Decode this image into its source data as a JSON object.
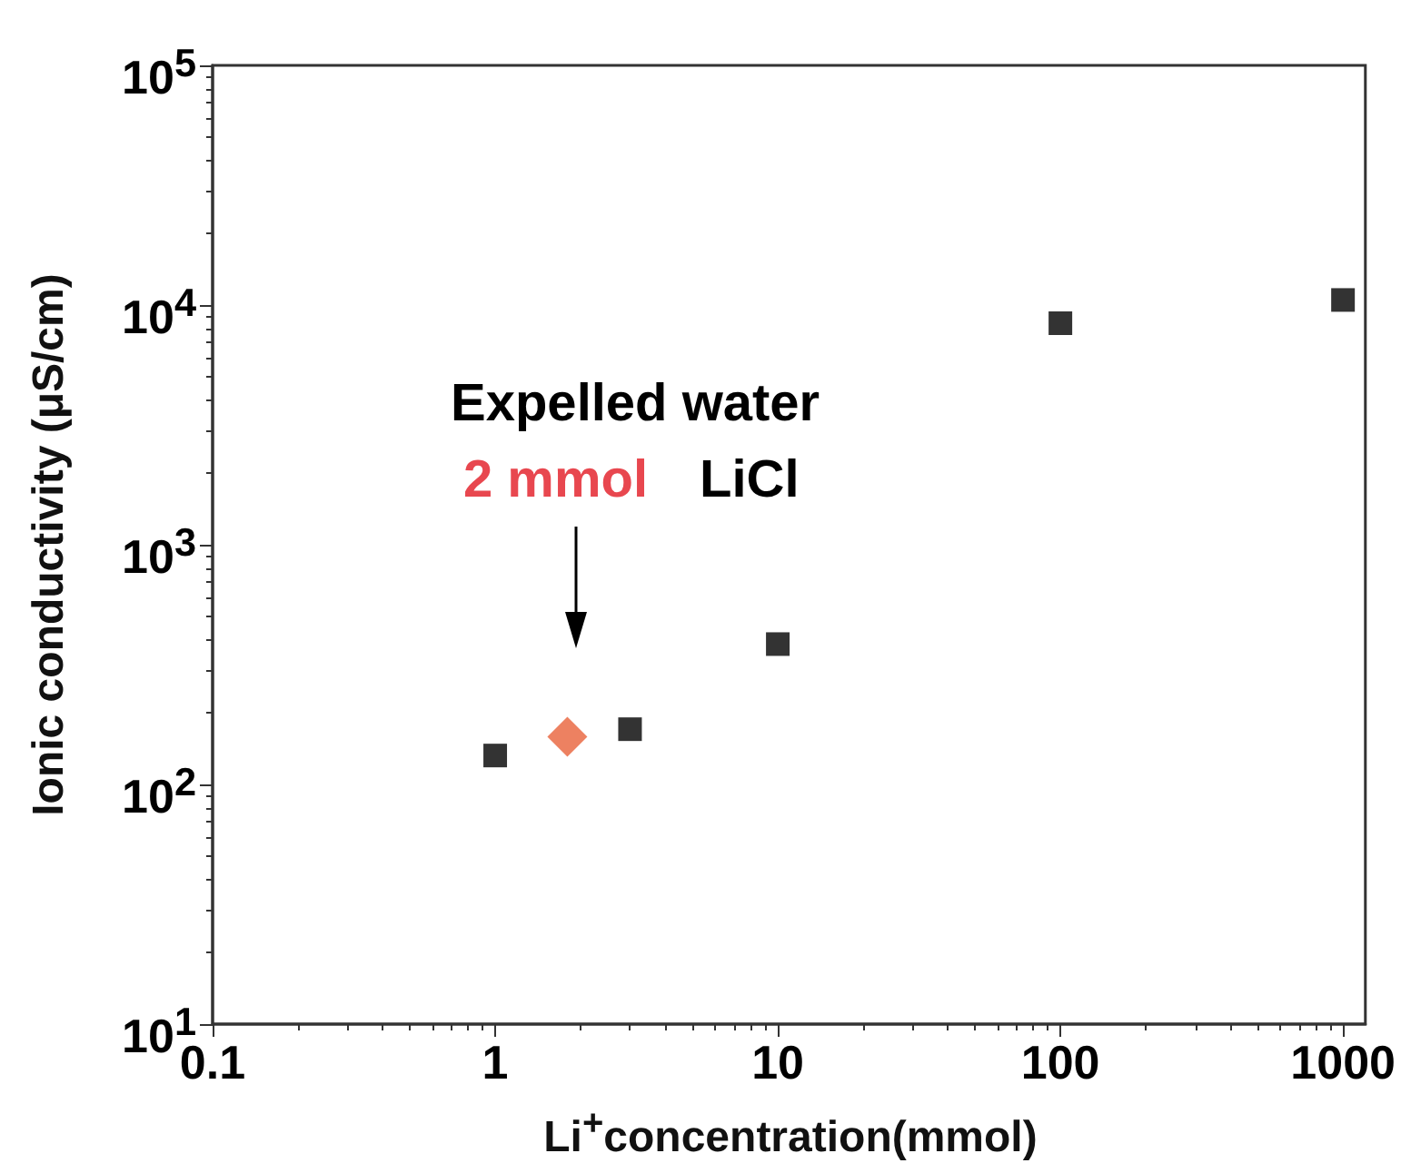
{
  "chart_data": {
    "type": "scatter",
    "xlabel": "Li$^{+}$concentration(mmol)",
    "ylabel": "Ionic conductivity (μS/cm)",
    "annotations": [
      "Expelled water",
      "2 mmol",
      "LiCl"
    ],
    "log": "xy",
    "xlim": [
      0.1,
      1200
    ],
    "ylim": [
      10,
      100000
    ],
    "xticks": [
      0.1,
      {
        "value": 0.2,
        "label": null
      },
      {
        "value": 0.3,
        "label": null
      },
      {
        "value": 0.4,
        "label": null
      },
      {
        "value": 0.5,
        "label": null
      },
      {
        "value": 0.6,
        "label": null
      },
      {
        "value": 0.7,
        "label": null
      },
      {
        "value": 0.8,
        "label": null
      },
      {
        "value": 0.9,
        "label": null
      },
      1,
      {
        "value": 2,
        "label": null
      },
      {
        "value": 3,
        "label": null
      },
      {
        "value": 4,
        "label": null
      },
      {
        "value": 5,
        "label": null
      },
      {
        "value": 6,
        "label": null
      },
      {
        "value": 7,
        "label": null
      },
      {
        "value": 8,
        "label": null
      },
      {
        "value": 9,
        "label": null
      },
      10,
      {
        "value": 20,
        "label": null
      },
      {
        "value": 30,
        "label": null
      },
      {
        "value": 40,
        "label": null
      },
      {
        "value": 50,
        "label": null
      },
      {
        "value": 60,
        "label": null
      },
      {
        "value": 70,
        "label": null
      },
      {
        "value": 80,
        "label": null
      },
      {
        "value": 90,
        "label": null
      },
      100,
      {
        "value": 200,
        "label": null
      },
      {
        "value": 300,
        "label": null
      },
      {
        "value": 400,
        "label": null
      },
      {
        "value": 500,
        "label": null
      },
      {
        "value": 600,
        "label": null
      },
      {
        "value": 700,
        "label": null
      },
      {
        "value": 800,
        "label": null
      },
      {
        "value": 900,
        "label": null
      },
      1000
    ],
    "yticks": [
      {
        "value": 10,
        "label": "10$^{1}$"
      },
      {
        "value": 20,
        "label": null
      },
      {
        "value": 30,
        "label": null
      },
      {
        "value": 40,
        "label": null
      },
      {
        "value": 50,
        "label": null
      },
      {
        "value": 60,
        "label": null
      },
      {
        "value": 70,
        "label": null
      },
      {
        "value": 80,
        "label": null
      },
      {
        "value": 90,
        "label": null
      },
      {
        "value": 100,
        "label": "10$^{2}$"
      },
      {
        "value": 200,
        "label": null
      },
      {
        "value": 300,
        "label": null
      },
      {
        "value": 400,
        "label": null
      },
      {
        "value": 500,
        "label": null
      },
      {
        "value": 600,
        "label": null
      },
      {
        "value": 700,
        "label": null
      },
      {
        "value": 800,
        "label": null
      },
      {
        "value": 900,
        "label": null
      },
      {
        "value": 1000,
        "label": "10$^{3}$"
      },
      {
        "value": 2000,
        "label": null
      },
      {
        "value": 3000,
        "label": null
      },
      {
        "value": 4000,
        "label": null
      },
      {
        "value": 5000,
        "label": null
      },
      {
        "value": 6000,
        "label": null
      },
      {
        "value": 7000,
        "label": null
      },
      {
        "value": 8000,
        "label": null
      },
      {
        "value": 9000,
        "label": null
      },
      {
        "value": 10000,
        "label": "10$^{4}$"
      },
      {
        "value": 20000,
        "label": null
      },
      {
        "value": 30000,
        "label": null
      },
      {
        "value": 40000,
        "label": null
      },
      {
        "value": 50000,
        "label": null
      },
      {
        "value": 60000,
        "label": null
      },
      {
        "value": 70000,
        "label": null
      },
      {
        "value": 80000,
        "label": null
      },
      {
        "value": 90000,
        "label": null
      },
      {
        "value": 100000,
        "label": "10$^{5}$"
      }
    ],
    "grid": false,
    "series": [
      {
        "color": "#000000",
        "marker": "square",
        "x": [
          1,
          3,
          10,
          100,
          1000
        ],
        "values": [
          132,
          170,
          385,
          8400,
          10500
        ]
      },
      {
        "color": "#e8613a",
        "marker": "diamond",
        "x": [
          1.8
        ],
        "values": [
          158
        ]
      }
    ]
  }
}
